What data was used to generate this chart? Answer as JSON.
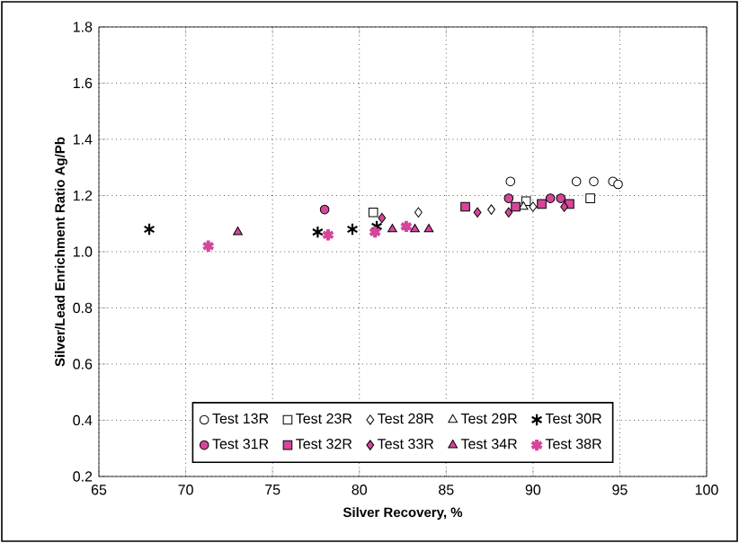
{
  "chart_data": {
    "type": "scatter",
    "xlabel": "Silver Recovery, %",
    "ylabel": "Silver/Lead Enrichment Ratio Ag/Pb",
    "xlim": [
      65,
      100
    ],
    "ylim": [
      0.2,
      1.8
    ],
    "xticks": [
      65,
      70,
      75,
      80,
      85,
      90,
      95,
      100
    ],
    "yticks": [
      0.2,
      0.4,
      0.6,
      0.8,
      {
        "value": 1.0,
        "label": "1.0"
      },
      1.2,
      1.4,
      1.6,
      1.8
    ],
    "grid": true,
    "legend": "bottom",
    "series": [
      {
        "name": "Test 13R",
        "color": "#ffffff",
        "marker": "circle",
        "x": [
          88.7,
          92.5,
          93.5,
          94.6,
          94.9
        ],
        "values": [
          1.25,
          1.25,
          1.25,
          1.25,
          1.24
        ]
      },
      {
        "name": "Test 23R",
        "color": "#ffffff",
        "marker": "square",
        "x": [
          80.8,
          89.6,
          93.3
        ],
        "values": [
          1.14,
          1.18,
          1.19
        ]
      },
      {
        "name": "Test 28R",
        "color": "#ffffff",
        "marker": "diamond",
        "x": [
          83.4,
          87.6,
          90.0
        ],
        "values": [
          1.14,
          1.15,
          1.16
        ]
      },
      {
        "name": "Test 29R",
        "color": "#ffffff",
        "marker": "triangle",
        "x": [
          89.45
        ],
        "values": [
          1.16
        ]
      },
      {
        "name": "Test 30R",
        "color": "#000000",
        "marker": "cross",
        "x": [
          67.9,
          77.6,
          79.6,
          81.0
        ],
        "values": [
          1.08,
          1.07,
          1.08,
          1.09
        ]
      },
      {
        "name": "Test 31R",
        "color": "#d6459b",
        "marker": "circle",
        "x": [
          78.0,
          88.6,
          91.0,
          91.6
        ],
        "values": [
          1.15,
          1.19,
          1.19,
          1.19
        ]
      },
      {
        "name": "Test 32R",
        "color": "#d6459b",
        "marker": "square",
        "x": [
          86.1,
          89.0,
          90.5,
          92.1
        ],
        "values": [
          1.16,
          1.16,
          1.17,
          1.17
        ]
      },
      {
        "name": "Test 33R",
        "color": "#d6459b",
        "marker": "diamond",
        "x": [
          81.3,
          86.8,
          88.6,
          91.8
        ],
        "values": [
          1.12,
          1.14,
          1.14,
          1.16
        ]
      },
      {
        "name": "Test 34R",
        "color": "#d6459b",
        "marker": "triangle",
        "x": [
          73.0,
          81.9,
          83.2,
          84.0
        ],
        "values": [
          1.07,
          1.08,
          1.08,
          1.08
        ]
      },
      {
        "name": "Test 38R",
        "color": "#d6459b",
        "marker": "cross",
        "x": [
          71.3,
          78.2,
          80.9,
          82.7
        ],
        "values": [
          1.02,
          1.06,
          1.07,
          1.09
        ]
      }
    ]
  }
}
